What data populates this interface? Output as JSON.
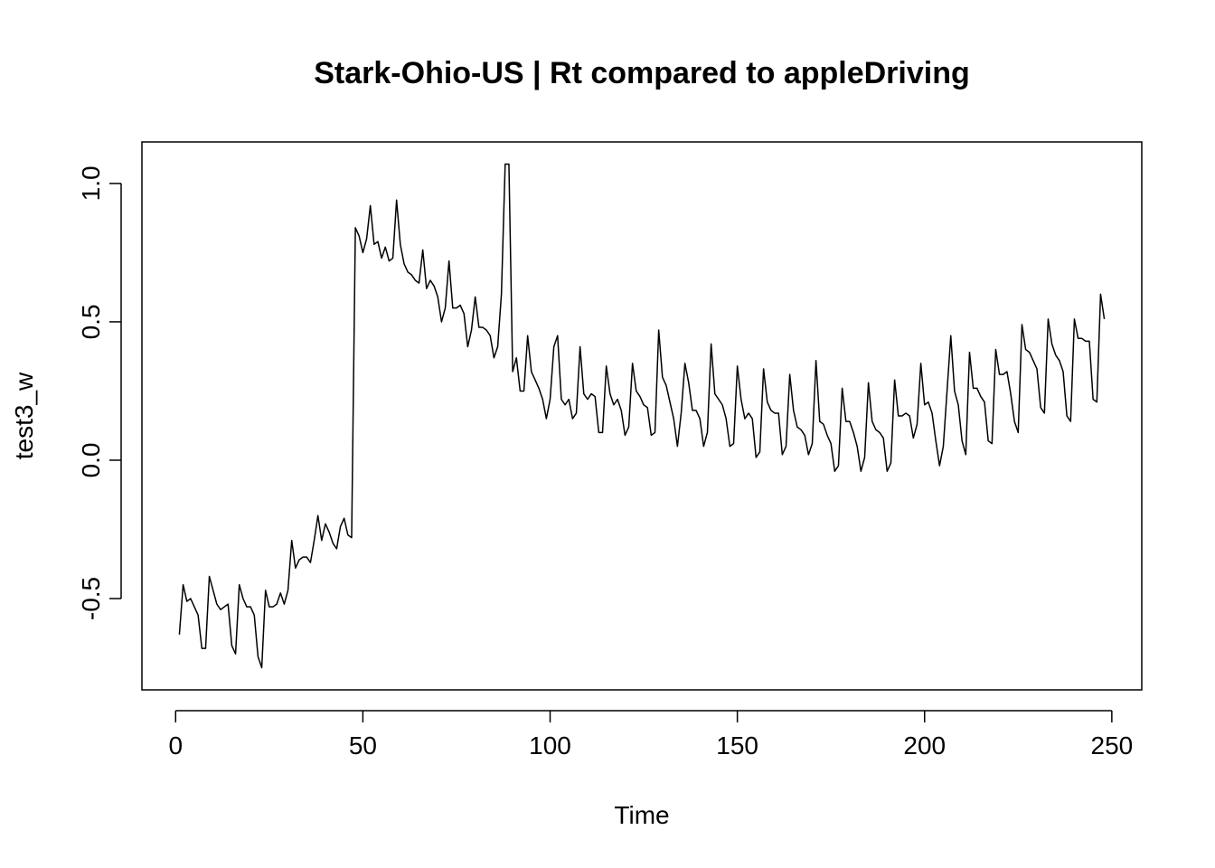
{
  "chart_data": {
    "type": "line",
    "title": "Stark-Ohio-US | Rt compared to appleDriving",
    "xlabel": "Time",
    "ylabel": "test3_w",
    "xlim": [
      -9,
      258
    ],
    "ylim": [
      -0.83,
      1.15
    ],
    "xticks": [
      0,
      50,
      100,
      150,
      200,
      250
    ],
    "yticks": [
      -0.5,
      0.0,
      0.5,
      1.0
    ],
    "xtick_labels": [
      "0",
      "50",
      "100",
      "150",
      "200",
      "250"
    ],
    "ytick_labels": [
      "-0.5",
      "0.0",
      "0.5",
      "1.0"
    ],
    "grid": false,
    "line_color": "#000000",
    "series": [
      {
        "x_start": 1,
        "x_step": 1,
        "values": [
          -0.63,
          -0.45,
          -0.51,
          -0.5,
          -0.53,
          -0.56,
          -0.68,
          -0.68,
          -0.42,
          -0.47,
          -0.52,
          -0.54,
          -0.53,
          -0.52,
          -0.67,
          -0.7,
          -0.45,
          -0.5,
          -0.53,
          -0.53,
          -0.56,
          -0.71,
          -0.75,
          -0.47,
          -0.53,
          -0.53,
          -0.52,
          -0.48,
          -0.52,
          -0.47,
          -0.29,
          -0.39,
          -0.36,
          -0.35,
          -0.35,
          -0.37,
          -0.29,
          -0.2,
          -0.29,
          -0.23,
          -0.26,
          -0.3,
          -0.32,
          -0.24,
          -0.21,
          -0.27,
          -0.28,
          0.84,
          0.81,
          0.75,
          0.8,
          0.92,
          0.78,
          0.79,
          0.73,
          0.77,
          0.72,
          0.73,
          0.94,
          0.78,
          0.71,
          0.68,
          0.67,
          0.65,
          0.64,
          0.76,
          0.62,
          0.65,
          0.63,
          0.59,
          0.5,
          0.55,
          0.72,
          0.55,
          0.55,
          0.56,
          0.53,
          0.41,
          0.47,
          0.59,
          0.48,
          0.48,
          0.47,
          0.45,
          0.37,
          0.41,
          0.6,
          1.07,
          1.07,
          0.32,
          0.37,
          0.25,
          0.25,
          0.45,
          0.32,
          0.29,
          0.26,
          0.22,
          0.15,
          0.22,
          0.41,
          0.45,
          0.22,
          0.2,
          0.22,
          0.15,
          0.17,
          0.41,
          0.24,
          0.22,
          0.24,
          0.23,
          0.1,
          0.1,
          0.34,
          0.24,
          0.2,
          0.22,
          0.18,
          0.09,
          0.12,
          0.35,
          0.25,
          0.23,
          0.2,
          0.19,
          0.09,
          0.1,
          0.47,
          0.3,
          0.27,
          0.21,
          0.15,
          0.05,
          0.17,
          0.35,
          0.28,
          0.18,
          0.18,
          0.15,
          0.05,
          0.1,
          0.42,
          0.24,
          0.22,
          0.2,
          0.15,
          0.05,
          0.06,
          0.34,
          0.22,
          0.15,
          0.17,
          0.15,
          0.01,
          0.03,
          0.33,
          0.21,
          0.18,
          0.17,
          0.17,
          0.02,
          0.05,
          0.31,
          0.18,
          0.12,
          0.11,
          0.09,
          0.02,
          0.06,
          0.36,
          0.14,
          0.13,
          0.09,
          0.06,
          -0.04,
          -0.02,
          0.26,
          0.14,
          0.14,
          0.1,
          0.05,
          -0.04,
          0.01,
          0.28,
          0.14,
          0.11,
          0.1,
          0.08,
          -0.04,
          -0.01,
          0.29,
          0.16,
          0.16,
          0.17,
          0.16,
          0.08,
          0.13,
          0.35,
          0.2,
          0.21,
          0.17,
          0.07,
          -0.02,
          0.05,
          0.25,
          0.45,
          0.25,
          0.2,
          0.07,
          0.02,
          0.39,
          0.26,
          0.26,
          0.23,
          0.21,
          0.07,
          0.06,
          0.4,
          0.31,
          0.31,
          0.32,
          0.24,
          0.14,
          0.1,
          0.49,
          0.4,
          0.39,
          0.36,
          0.33,
          0.19,
          0.17,
          0.51,
          0.42,
          0.38,
          0.36,
          0.32,
          0.16,
          0.14,
          0.51,
          0.44,
          0.44,
          0.43,
          0.43,
          0.22,
          0.21,
          0.6,
          0.51
        ]
      }
    ]
  }
}
